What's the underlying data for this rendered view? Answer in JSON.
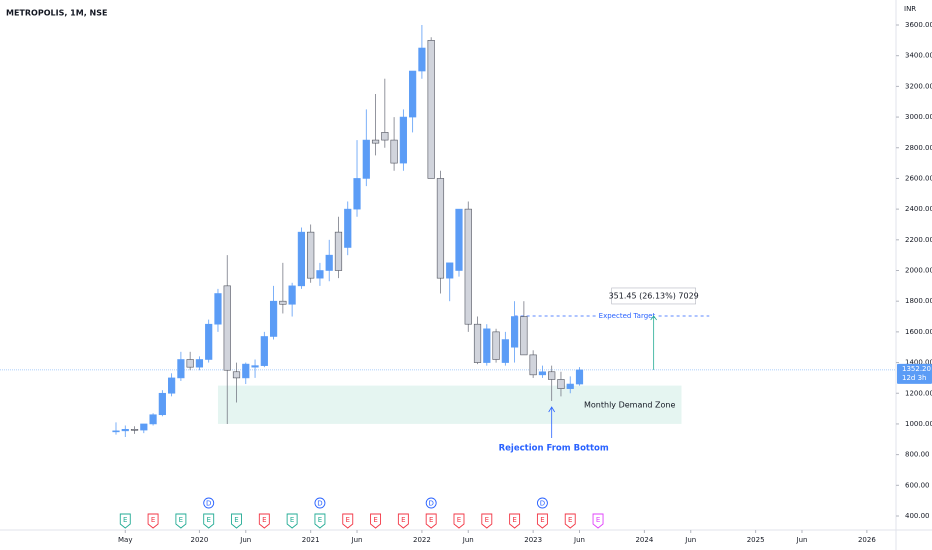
{
  "chart_data": {
    "type": "candlestick",
    "title": "METROPOLIS, 1M, NSE",
    "currency": "INR",
    "up_color": "#5b9cf6",
    "down_color": "#d1d4dc",
    "grid": false,
    "x": [
      "2019-04",
      "2019-05",
      "2019-06",
      "2019-07",
      "2019-08",
      "2019-09",
      "2019-10",
      "2019-11",
      "2019-12",
      "2020-01",
      "2020-02",
      "2020-03",
      "2020-04",
      "2020-05",
      "2020-06",
      "2020-07",
      "2020-08",
      "2020-09",
      "2020-10",
      "2020-11",
      "2020-12",
      "2021-01",
      "2021-02",
      "2021-03",
      "2021-04",
      "2021-05",
      "2021-06",
      "2021-07",
      "2021-08",
      "2021-09",
      "2021-10",
      "2021-11",
      "2021-12",
      "2022-01",
      "2022-02",
      "2022-03",
      "2022-04",
      "2022-05",
      "2022-06",
      "2022-07",
      "2022-08",
      "2022-09",
      "2022-10",
      "2022-11",
      "2022-12",
      "2023-01",
      "2023-02",
      "2023-03",
      "2023-04",
      "2023-05",
      "2023-06"
    ],
    "open": [
      950,
      955,
      965,
      960,
      1000,
      1060,
      1200,
      1300,
      1420,
      1370,
      1420,
      1650,
      1900,
      1340,
      1300,
      1370,
      1380,
      1570,
      1800,
      1780,
      1900,
      2250,
      1950,
      2000,
      2250,
      2150,
      2400,
      2600,
      2850,
      2900,
      2850,
      2700,
      3000,
      3300,
      3500,
      2600,
      1950,
      2000,
      2400,
      1650,
      1400,
      1600,
      1400,
      1500,
      1700,
      1450,
      1320,
      1340,
      1290,
      1230,
      1260
    ],
    "high": [
      1010,
      990,
      985,
      1000,
      1070,
      1220,
      1330,
      1470,
      1470,
      1440,
      1680,
      1880,
      2100,
      1400,
      1400,
      1420,
      1600,
      1900,
      2050,
      1920,
      2280,
      2300,
      2050,
      2200,
      2350,
      2450,
      2850,
      3050,
      3150,
      3250,
      3000,
      3050,
      3300,
      3600,
      3520,
      2650,
      2050,
      2400,
      2450,
      1700,
      1650,
      1620,
      1600,
      1800,
      1800,
      1480,
      1380,
      1380,
      1340,
      1310,
      1370
    ],
    "low": [
      930,
      915,
      935,
      940,
      990,
      1050,
      1180,
      1280,
      1350,
      1350,
      1400,
      1600,
      1000,
      1140,
      1260,
      1300,
      1370,
      1550,
      1720,
      1700,
      1880,
      1920,
      1900,
      1930,
      1950,
      2100,
      2350,
      2550,
      2750,
      2800,
      2650,
      2650,
      2900,
      3250,
      2600,
      1850,
      1800,
      1960,
      1600,
      1390,
      1380,
      1400,
      1380,
      1400,
      1450,
      1300,
      1300,
      1150,
      1180,
      1200,
      1250
    ],
    "close": [
      955,
      965,
      960,
      1000,
      1060,
      1200,
      1300,
      1420,
      1370,
      1420,
      1650,
      1850,
      1350,
      1300,
      1390,
      1380,
      1570,
      1800,
      1780,
      1900,
      2250,
      1950,
      2000,
      2100,
      2000,
      2400,
      2600,
      2850,
      2830,
      2850,
      2700,
      3000,
      3300,
      3450,
      2600,
      1950,
      2050,
      2400,
      1650,
      1400,
      1620,
      1420,
      1550,
      1700,
      1450,
      1320,
      1340,
      1290,
      1230,
      1260,
      1352.2
    ],
    "ylim": [
      400,
      3600
    ],
    "yticks": [
      {
        "value": 400,
        "label": "400.00"
      },
      {
        "value": 600,
        "label": "600.00"
      },
      {
        "value": 800,
        "label": "800.00"
      },
      {
        "value": 1000,
        "label": "1000.00"
      },
      {
        "value": 1200,
        "label": "1200.00"
      },
      {
        "value": 1400,
        "label": "1400.00"
      },
      {
        "value": 1600,
        "label": "1600.00"
      },
      {
        "value": 1800,
        "label": "1800.00"
      },
      {
        "value": 2000,
        "label": "2000.00"
      },
      {
        "value": 2200,
        "label": "2200.00"
      },
      {
        "value": 2400,
        "label": "2400.00"
      },
      {
        "value": 2600,
        "label": "2600.00"
      },
      {
        "value": 2800,
        "label": "2800.00"
      },
      {
        "value": 3000,
        "label": "3000.00"
      },
      {
        "value": 3200,
        "label": "3200.00"
      },
      {
        "value": 3400,
        "label": "3400.00"
      },
      {
        "value": 3600,
        "label": "3600.00"
      }
    ],
    "xticks": [
      {
        "value": "2019-05",
        "label": "May"
      },
      {
        "value": "2020-01",
        "label": "2020"
      },
      {
        "value": "2020-06",
        "label": "Jun"
      },
      {
        "value": "2021-01",
        "label": "2021"
      },
      {
        "value": "2021-06",
        "label": "Jun"
      },
      {
        "value": "2022-01",
        "label": "2022"
      },
      {
        "value": "2022-06",
        "label": "Jun"
      },
      {
        "value": "2023-01",
        "label": "2023"
      },
      {
        "value": "2023-06",
        "label": "Jun"
      },
      {
        "value": "2024-01",
        "label": "2024"
      },
      {
        "value": "2024-06",
        "label": "Jun"
      },
      {
        "value": "2025-01",
        "label": "2025"
      },
      {
        "value": "2025-06",
        "label": "Jun"
      },
      {
        "value": "2026-01",
        "label": "2026"
      }
    ],
    "last_price": {
      "value": 1352.2,
      "label": "1352.20"
    },
    "countdown": "12d 3h",
    "demand_zone": {
      "label": "Monthly Demand Zone",
      "from": "2020-03",
      "to": "2024-05",
      "low": 1000,
      "high": 1250
    },
    "expected_target": {
      "label": "Expected Target",
      "value": 1703.65,
      "from": "2022-11",
      "to": "2024-08"
    },
    "measure": {
      "label": "351.45 (26.13%) 7029",
      "x": "2024-02",
      "from": 1352.2,
      "to": 1703.65
    },
    "rejection": {
      "label": "Rejection From Bottom",
      "x": "2023-03"
    },
    "events": [
      {
        "x": "2019-05",
        "label": "E",
        "color": "#22ab94"
      },
      {
        "x": "2019-08",
        "label": "E",
        "color": "#f23645"
      },
      {
        "x": "2019-11",
        "label": "E",
        "color": "#22ab94"
      },
      {
        "x": "2020-02",
        "label": "E",
        "color": "#22ab94"
      },
      {
        "x": "2020-05",
        "label": "E",
        "color": "#22ab94"
      },
      {
        "x": "2020-08",
        "label": "E",
        "color": "#f23645"
      },
      {
        "x": "2020-11",
        "label": "E",
        "color": "#22ab94"
      },
      {
        "x": "2021-02",
        "label": "E",
        "color": "#22ab94"
      },
      {
        "x": "2021-05",
        "label": "E",
        "color": "#f23645"
      },
      {
        "x": "2021-08",
        "label": "E",
        "color": "#f23645"
      },
      {
        "x": "2021-11",
        "label": "E",
        "color": "#f23645"
      },
      {
        "x": "2022-02",
        "label": "E",
        "color": "#f23645"
      },
      {
        "x": "2022-05",
        "label": "E",
        "color": "#f23645"
      },
      {
        "x": "2022-08",
        "label": "E",
        "color": "#f23645"
      },
      {
        "x": "2022-11",
        "label": "E",
        "color": "#f23645"
      },
      {
        "x": "2023-02",
        "label": "E",
        "color": "#f23645"
      },
      {
        "x": "2023-05",
        "label": "E",
        "color": "#f23645"
      },
      {
        "x": "2023-08",
        "label": "E",
        "color": "#e040fb"
      }
    ],
    "dividends": [
      {
        "x": "2020-02",
        "label": "D"
      },
      {
        "x": "2021-02",
        "label": "D"
      },
      {
        "x": "2022-02",
        "label": "D"
      },
      {
        "x": "2023-02",
        "label": "D"
      }
    ]
  }
}
